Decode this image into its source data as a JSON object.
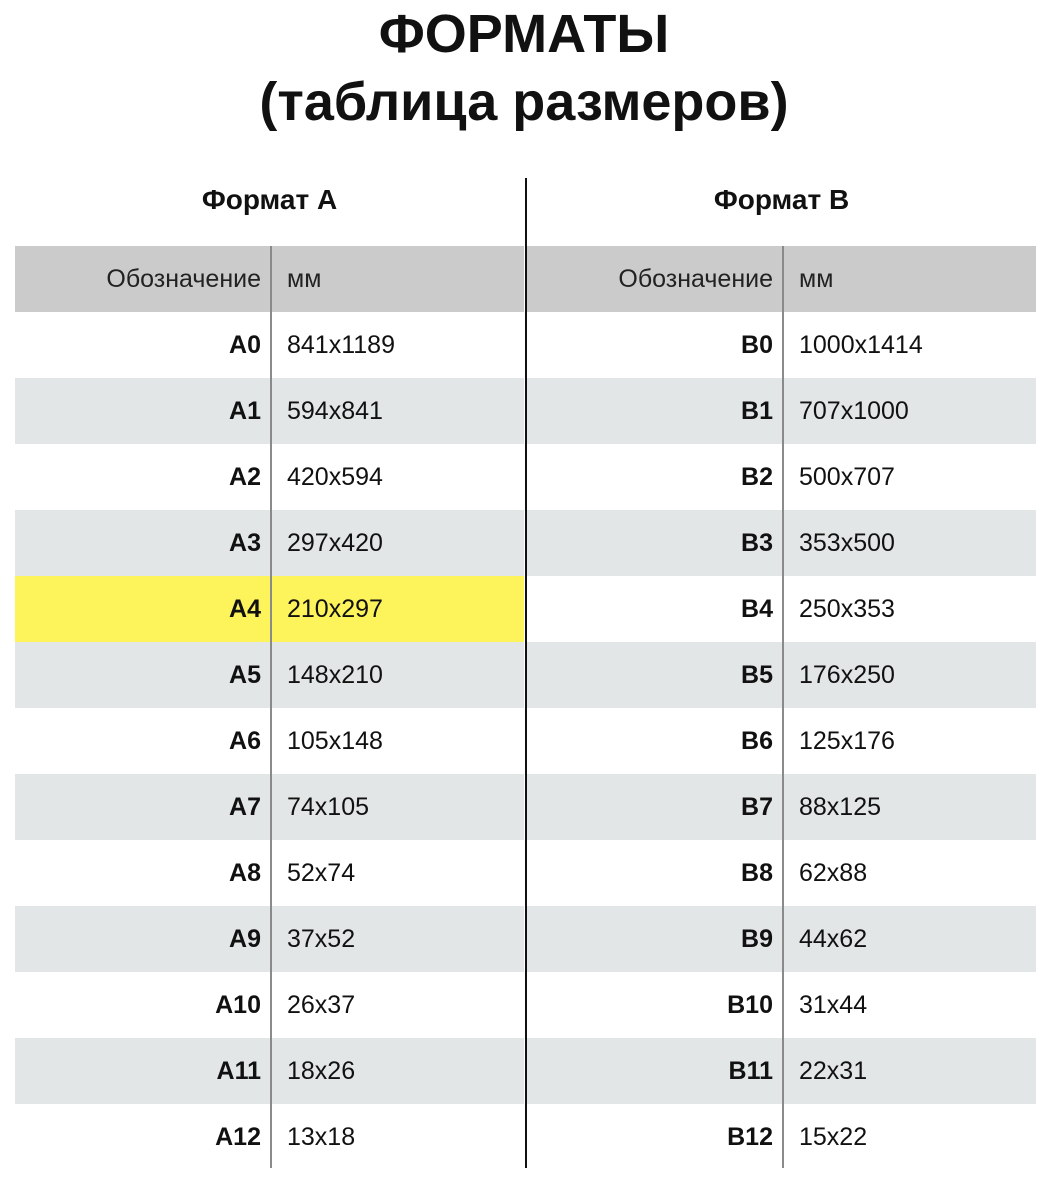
{
  "title": {
    "line1": "ФОРМАТЫ",
    "line2": "(таблица размеров)"
  },
  "colors": {
    "header_bg": "#cbcbcb",
    "stripe_bg": "#e3e6e6",
    "highlight": "#fdf35b"
  },
  "tables": [
    {
      "title": "Формат А",
      "headers": [
        "Обозначение",
        "мм"
      ],
      "highlighted": "A4",
      "rows": [
        [
          "A0",
          "841x1189"
        ],
        [
          "A1",
          "594x841"
        ],
        [
          "A2",
          "420x594"
        ],
        [
          "A3",
          "297x420"
        ],
        [
          "A4",
          "210x297"
        ],
        [
          "A5",
          "148x210"
        ],
        [
          "A6",
          "105x148"
        ],
        [
          "A7",
          "74x105"
        ],
        [
          "A8",
          "52x74"
        ],
        [
          "A9",
          "37x52"
        ],
        [
          "A10",
          "26x37"
        ],
        [
          "A11",
          "18x26"
        ],
        [
          "A12",
          "13x18"
        ]
      ]
    },
    {
      "title": "Формат B",
      "headers": [
        "Обозначение",
        "мм"
      ],
      "rows": [
        [
          "B0",
          "1000x1414"
        ],
        [
          "B1",
          "707x1000"
        ],
        [
          "B2",
          "500x707"
        ],
        [
          "B3",
          "353x500"
        ],
        [
          "B4",
          "250x353"
        ],
        [
          "B5",
          "176x250"
        ],
        [
          "B6",
          "125x176"
        ],
        [
          "B7",
          "88x125"
        ],
        [
          "B8",
          "62x88"
        ],
        [
          "B9",
          "44x62"
        ],
        [
          "B10",
          "31x44"
        ],
        [
          "B11",
          "22x31"
        ],
        [
          "B12",
          "15x22"
        ]
      ]
    }
  ]
}
